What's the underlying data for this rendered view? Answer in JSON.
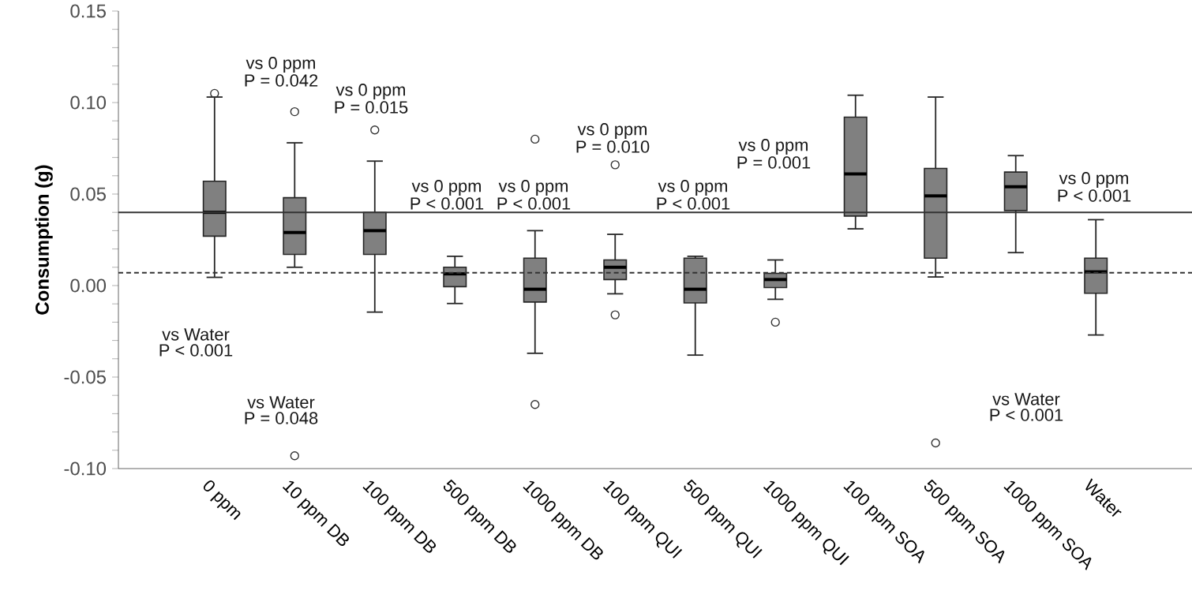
{
  "chart_data": {
    "type": "box",
    "ylabel": "Consumption (g)",
    "categories": [
      "0 ppm",
      "10 ppm DB",
      "100 ppm DB",
      "500 ppm DB",
      "1000 ppm DB",
      "100 ppm QUI",
      "500 ppm QUI",
      "1000 ppm QUI",
      "100 ppm SOA",
      "500 ppm SOA",
      "1000 ppm SOA",
      "Water"
    ],
    "color": "#808080",
    "boxes": [
      {
        "low": 0.0045,
        "q1": 0.027,
        "median": 0.04,
        "q3": 0.057,
        "high": 0.103,
        "outliers": [
          0.105
        ]
      },
      {
        "low": 0.01,
        "q1": 0.017,
        "median": 0.029,
        "q3": 0.048,
        "high": 0.078,
        "outliers": [
          0.095,
          -0.093
        ]
      },
      {
        "low": -0.0145,
        "q1": 0.017,
        "median": 0.03,
        "q3": 0.04,
        "high": 0.068,
        "outliers": [
          0.085
        ]
      },
      {
        "low": -0.0098,
        "q1": -0.0006,
        "median": 0.0064,
        "q3": 0.01,
        "high": 0.016
      },
      {
        "low": -0.037,
        "q1": -0.009,
        "median": -0.002,
        "q3": 0.015,
        "high": 0.03,
        "outliers": [
          0.08,
          -0.065
        ]
      },
      {
        "low": -0.0045,
        "q1": 0.0033,
        "median": 0.01,
        "q3": 0.014,
        "high": 0.028,
        "outliers": [
          0.066,
          -0.016
        ]
      },
      {
        "low": -0.038,
        "q1": -0.0095,
        "median": -0.002,
        "q3": 0.015,
        "high": 0.016
      },
      {
        "low": -0.0075,
        "q1": -0.0011,
        "median": 0.0033,
        "q3": 0.0067,
        "high": 0.014,
        "outliers": [
          -0.02
        ]
      },
      {
        "low": 0.031,
        "q1": 0.038,
        "median": 0.061,
        "q3": 0.092,
        "high": 0.104
      },
      {
        "low": 0.0047,
        "q1": 0.015,
        "median": 0.049,
        "q3": 0.064,
        "high": 0.103,
        "outliers": [
          -0.086
        ]
      },
      {
        "low": 0.018,
        "q1": 0.041,
        "median": 0.054,
        "q3": 0.062,
        "high": 0.071
      },
      {
        "low": -0.027,
        "q1": -0.0042,
        "median": 0.0075,
        "q3": 0.015,
        "high": 0.036
      }
    ],
    "ylim": [
      -0.1,
      0.15
    ],
    "yticks": [
      {
        "value": -0.1,
        "label": "-0.10"
      },
      {
        "value": -0.09,
        "label": null
      },
      {
        "value": -0.08,
        "label": null
      },
      {
        "value": -0.07,
        "label": null
      },
      {
        "value": -0.06,
        "label": null
      },
      {
        "value": -0.05,
        "label": "-0.05"
      },
      {
        "value": -0.04,
        "label": null
      },
      {
        "value": -0.03,
        "label": null
      },
      {
        "value": -0.02,
        "label": null
      },
      {
        "value": -0.01,
        "label": null
      },
      {
        "value": 0.0,
        "label": "0.00"
      },
      {
        "value": 0.01,
        "label": null
      },
      {
        "value": 0.02,
        "label": null
      },
      {
        "value": 0.03,
        "label": null
      },
      {
        "value": 0.04,
        "label": null
      },
      {
        "value": 0.05,
        "label": "0.05"
      },
      {
        "value": 0.06,
        "label": null
      },
      {
        "value": 0.07,
        "label": null
      },
      {
        "value": 0.08,
        "label": null
      },
      {
        "value": 0.09,
        "label": null
      },
      {
        "value": 0.1,
        "label": "0.10"
      },
      {
        "value": 0.11,
        "label": null
      },
      {
        "value": 0.12,
        "label": null
      },
      {
        "value": 0.13,
        "label": null
      },
      {
        "value": 0.14,
        "label": null
      },
      {
        "value": 0.15,
        "label": "0.15"
      }
    ],
    "ref_lines": [
      {
        "axis": "y",
        "value": 0.04,
        "line_style": "solid"
      },
      {
        "axis": "y",
        "value": 0.007,
        "line_style": "dashed"
      }
    ],
    "annotations": [
      "vs 0 ppm",
      "P = 0.042",
      "vs 0 ppm",
      "P = 0.015",
      "vs 0 ppm",
      "P < 0.001",
      "vs 0 ppm",
      "P < 0.001",
      "vs 0 ppm",
      "P = 0.010",
      "vs 0 ppm",
      "P < 0.001",
      "vs 0 ppm",
      "P = 0.001",
      "vs 0 ppm",
      "P < 0.001",
      "vs Water",
      "P < 0.001",
      "vs Water",
      "P = 0.048",
      "vs Water",
      "P < 0.001"
    ],
    "grid": false
  }
}
